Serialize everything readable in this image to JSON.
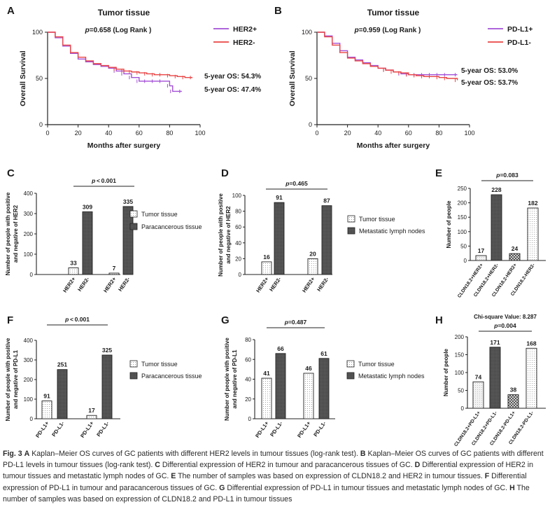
{
  "panels": [
    {
      "id": "A",
      "kind": "km",
      "letter": "A",
      "title": "Tumor tissue",
      "pvalue": "=0.658 (Log Rank )",
      "p": "p",
      "xlabel": "Months after surgery",
      "ylabel": "Overall Survival",
      "xticks": [
        "0",
        "20",
        "40",
        "60",
        "80",
        "100"
      ],
      "yticks": [
        "0",
        "50",
        "100"
      ],
      "legend": [
        "HER2+",
        "HER2-"
      ],
      "os_labels": [
        "5-year OS: 54.3%",
        "5-year OS: 47.4%"
      ]
    },
    {
      "id": "B",
      "kind": "km",
      "letter": "B",
      "title": "Tumor tissue",
      "pvalue": "=0.959 (Log Rank )",
      "p": "p",
      "xlabel": "Months after surgery",
      "ylabel": "Overall Survival",
      "xticks": [
        "0",
        "20",
        "40",
        "60",
        "80",
        "100"
      ],
      "yticks": [
        "0",
        "50",
        "100"
      ],
      "legend": [
        "PD-L1+",
        "PD-L1-"
      ],
      "os_labels": [
        "5-year OS: 53.0%",
        "5-year OS: 53.7%"
      ]
    },
    {
      "id": "C",
      "kind": "bar",
      "letter": "C",
      "p": "p",
      "pvalue": " < 0.001",
      "ylabel1": "Number of people with positive",
      "ylabel2": "and negative of HER2",
      "yticks": [
        "0",
        "100",
        "200",
        "300",
        "400"
      ],
      "legend": [
        "Tumor tissue",
        "Paracancerous tissue"
      ]
    },
    {
      "id": "D",
      "kind": "bar",
      "letter": "D",
      "p": "p",
      "pvalue": "=0.465",
      "ylabel1": "Number of people with positive",
      "ylabel2": "and negative of HER2",
      "yticks": [
        "0",
        "20",
        "40",
        "60",
        "80",
        "100"
      ],
      "legend": [
        "Tumor tissue",
        "Metastatic lymph nodes"
      ]
    },
    {
      "id": "E",
      "kind": "bar",
      "letter": "E",
      "p": "p",
      "pvalue": "=0.083",
      "ylabel1": "Number of people",
      "ylabel2": "",
      "yticks": [
        "0",
        "50",
        "100",
        "150",
        "200",
        "250"
      ],
      "legend": []
    },
    {
      "id": "F",
      "kind": "bar",
      "letter": "F",
      "p": "p",
      "pvalue": " < 0.001",
      "ylabel1": "Number of people with positive",
      "ylabel2": "and negative of PD-L1",
      "yticks": [
        "0",
        "100",
        "200",
        "300",
        "400"
      ],
      "legend": [
        "Tumor tissue",
        "Paracancerous tissue"
      ]
    },
    {
      "id": "G",
      "kind": "bar",
      "letter": "G",
      "p": "p",
      "pvalue": "=0.487",
      "ylabel1": "Number of people with positive",
      "ylabel2": "and negative of PD-L1",
      "yticks": [
        "0",
        "20",
        "40",
        "60",
        "80"
      ],
      "legend": [
        "Tumor tissue",
        "Metastatic lymph nodes"
      ]
    },
    {
      "id": "H",
      "kind": "bar",
      "letter": "H",
      "p": "p",
      "pvalue": "=0.004",
      "extra": "Chi-square Value: 8.287",
      "ylabel1": "Number of people",
      "ylabel2": "",
      "yticks": [
        "0",
        "50",
        "100",
        "150",
        "200"
      ],
      "legend": []
    }
  ],
  "chart_data": [
    {
      "panel": "A",
      "type": "line",
      "title": "Tumor tissue",
      "xlabel": "Months after surgery",
      "ylabel": "Overall Survival",
      "xlim": [
        0,
        100
      ],
      "ylim": [
        0,
        100
      ],
      "series": [
        {
          "name": "HER2+",
          "color": "#a24fd6",
          "x": [
            0,
            5,
            10,
            15,
            20,
            25,
            30,
            35,
            40,
            45,
            50,
            55,
            60,
            65,
            70,
            75,
            80,
            82,
            88
          ],
          "values": [
            100,
            94,
            85,
            77,
            71,
            68,
            65,
            63,
            61,
            58,
            55,
            51,
            47,
            47,
            47,
            47,
            42,
            36,
            36
          ]
        },
        {
          "name": "HER2-",
          "color": "#e94545",
          "x": [
            0,
            5,
            10,
            15,
            20,
            25,
            30,
            35,
            40,
            45,
            50,
            55,
            60,
            65,
            70,
            75,
            80,
            85,
            90,
            95
          ],
          "values": [
            100,
            95,
            86,
            78,
            73,
            69,
            66,
            64,
            62,
            60,
            58,
            57,
            56,
            55,
            54,
            54,
            53,
            52,
            51,
            51
          ]
        }
      ],
      "annotations": [
        "5-year OS: 54.3%",
        "5-year OS: 47.4%"
      ]
    },
    {
      "panel": "B",
      "type": "line",
      "title": "Tumor tissue",
      "xlabel": "Months after surgery",
      "ylabel": "Overall Survival",
      "xlim": [
        0,
        100
      ],
      "ylim": [
        0,
        100
      ],
      "series": [
        {
          "name": "PD-L1+",
          "color": "#a24fd6",
          "x": [
            0,
            5,
            10,
            15,
            20,
            25,
            30,
            35,
            40,
            45,
            50,
            55,
            60,
            65,
            70,
            75,
            80,
            85,
            92
          ],
          "values": [
            100,
            96,
            88,
            80,
            73,
            70,
            67,
            64,
            61,
            59,
            57,
            55,
            54,
            54,
            54,
            54,
            54,
            54,
            54
          ]
        },
        {
          "name": "PD-L1-",
          "color": "#e94545",
          "x": [
            0,
            5,
            10,
            15,
            20,
            25,
            30,
            35,
            40,
            45,
            50,
            55,
            60,
            65,
            70,
            75,
            80,
            85,
            92
          ],
          "values": [
            100,
            95,
            86,
            78,
            72,
            69,
            66,
            63,
            61,
            59,
            57,
            56,
            54,
            53,
            52,
            52,
            51,
            50,
            48
          ]
        }
      ],
      "annotations": [
        "5-year OS: 53.0%",
        "5-year OS: 53.7%"
      ]
    },
    {
      "panel": "C",
      "type": "bar",
      "categories": [
        "HER2+",
        "HER2-",
        "HER2+",
        "HER2-"
      ],
      "groups": [
        "Tumor tissue",
        "Tumor tissue",
        "Paracancerous tissue",
        "Paracancerous tissue"
      ],
      "values": [
        33,
        309,
        7,
        335
      ],
      "ylim": [
        0,
        400
      ],
      "ylabel": "Number of people with positive and negative of HER2",
      "p": "p < 0.001"
    },
    {
      "panel": "D",
      "type": "bar",
      "categories": [
        "HER2+",
        "HER2-",
        "HER2+",
        "HER2-"
      ],
      "groups": [
        "Tumor tissue",
        "Tumor tissue",
        "Metastatic lymph nodes",
        "Metastatic lymph nodes"
      ],
      "values": [
        16,
        91,
        20,
        87
      ],
      "ylim": [
        0,
        100
      ],
      "ylabel": "Number of people with positive and negative of HER2",
      "p": "p=0.465"
    },
    {
      "panel": "E",
      "type": "bar",
      "categories": [
        "CLDN18.2+HER2+",
        "CLDN18.2+HER2-",
        "CLDN18.2-HER2+",
        "CLDN18.2-HER2-"
      ],
      "values": [
        17,
        228,
        24,
        182
      ],
      "ylim": [
        0,
        250
      ],
      "ylabel": "Number of people",
      "p": "p=0.083"
    },
    {
      "panel": "F",
      "type": "bar",
      "categories": [
        "PD-L1+",
        "PD-L1-",
        "PD-L1+",
        "PD-L1-"
      ],
      "groups": [
        "Tumor tissue",
        "Tumor tissue",
        "Paracancerous tissue",
        "Paracancerous tissue"
      ],
      "values": [
        91,
        251,
        17,
        325
      ],
      "ylim": [
        0,
        400
      ],
      "ylabel": "Number of people with positive and negative of PD-L1",
      "p": "p < 0.001"
    },
    {
      "panel": "G",
      "type": "bar",
      "categories": [
        "PD-L1+",
        "PD-L1-",
        "PD-L1+",
        "PD-L1-"
      ],
      "groups": [
        "Tumor tissue",
        "Tumor tissue",
        "Metastatic lymph nodes",
        "Metastatic lymph nodes"
      ],
      "values": [
        41,
        66,
        46,
        61
      ],
      "ylim": [
        0,
        80
      ],
      "ylabel": "Number of people with positive and negative of PD-L1",
      "p": "p=0.487"
    },
    {
      "panel": "H",
      "type": "bar",
      "categories": [
        "CLDN18.2+PD-L1+",
        "CLDN18.2+PD-L1-",
        "CLDN18.2-PD-L1+",
        "CLDN18.2-PD-L1-"
      ],
      "values": [
        74,
        171,
        38,
        168
      ],
      "ylim": [
        0,
        200
      ],
      "ylabel": "Number of people",
      "p": "p=0.004",
      "annotation": "Chi-square Value: 8.287"
    }
  ],
  "caption": {
    "lead": "Fig. 3",
    "segments": [
      {
        "l": "A",
        "t": " Kaplan–Meier OS curves of GC patients with different HER2 levels in tumour tissues (log-rank test). "
      },
      {
        "l": "B",
        "t": " Kaplan–Meier OS curves of GC patients with different PD-L1 levels in tumour tissues (log-rank test). "
      },
      {
        "l": "C",
        "t": " Differential expression of HER2 in tumour and paracancerous tissues of GC. "
      },
      {
        "l": "D",
        "t": " Differential expression of HER2 in tumour tissues and metastatic lymph nodes of GC. "
      },
      {
        "l": "E",
        "t": " The number of samples was based on expression of CLDN18.2 and HER2 in tumour tissues. "
      },
      {
        "l": "F",
        "t": " Differential expression of PD-L1 in tumour and paracancerous tissues of GC. "
      },
      {
        "l": "G",
        "t": " Differential expression of PD-L1 in tumour tissues and metastatic lymph nodes of GC. "
      },
      {
        "l": "H",
        "t": " The number of samples was based on expression of CLDN18.2 and PD-L1 in tumour tissues"
      }
    ]
  }
}
